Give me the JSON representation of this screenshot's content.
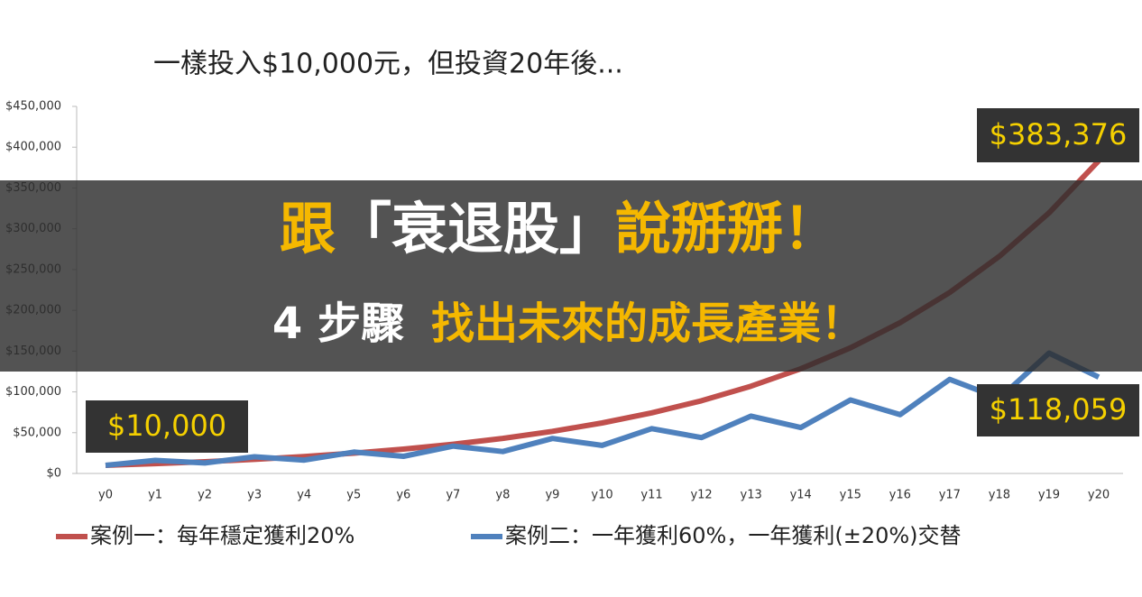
{
  "chart_data": {
    "type": "line",
    "title": "一樣投入$10,000元，但投資20年後...",
    "categories": [
      "y0",
      "y1",
      "y2",
      "y3",
      "y4",
      "y5",
      "y6",
      "y7",
      "y8",
      "y9",
      "y10",
      "y11",
      "y12",
      "y13",
      "y14",
      "y15",
      "y16",
      "y17",
      "y18",
      "y19",
      "y20"
    ],
    "series": [
      {
        "name": "案例一：每年穩定獲利20%",
        "color": "#c0504d",
        "values": [
          10000,
          12000,
          14400,
          17280,
          20736,
          24883,
          29860,
          35832,
          42998,
          51598,
          61917,
          74301,
          89161,
          106993,
          128392,
          154070,
          184884,
          221861,
          266233,
          319480,
          383376
        ]
      },
      {
        "name": "案例二：一年獲利60%，一年獲利(±20%)交替",
        "color": "#4f81bd",
        "values": [
          10000,
          16000,
          12800,
          20480,
          16384,
          26214,
          20972,
          33554,
          26844,
          42950,
          34360,
          54976,
          43980,
          70369,
          56295,
          90072,
          72058,
          115292,
          92234,
          147574,
          118059
        ]
      }
    ],
    "ylim": [
      0,
      450000
    ],
    "yticks": [
      {
        "value": 0,
        "label": "$0"
      },
      {
        "value": 50000,
        "label": "$50,000"
      },
      {
        "value": 100000,
        "label": "$100,000"
      },
      {
        "value": 150000,
        "label": "$150,000"
      },
      {
        "value": 200000,
        "label": "$200,000"
      },
      {
        "value": 250000,
        "label": "$250,000"
      },
      {
        "value": 300000,
        "label": "$300,000"
      },
      {
        "value": 350000,
        "label": "$350,000"
      },
      {
        "value": 400000,
        "label": "$400,000"
      },
      {
        "value": 450000,
        "label": "$450,000"
      }
    ],
    "grid": false,
    "legend": "bottom",
    "annotations": [
      "$10,000",
      "$383,376",
      "$118,059"
    ]
  },
  "banner": {
    "line1": [
      "跟",
      "「衰退股」",
      "說掰掰！"
    ],
    "line2": [
      "4 步驟",
      "找出未來的成長產業！"
    ]
  }
}
